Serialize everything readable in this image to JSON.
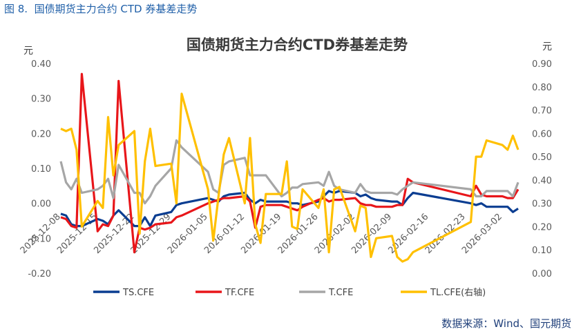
{
  "figure_label": "图 8.",
  "figure_caption": "国债期货主力合约 CTD 券基差走势",
  "source": "数据来源：Wind、国元期货",
  "chart_data": {
    "type": "line",
    "title": "国债期货主力合约CTD券基差走势",
    "ylabel_left": "元",
    "ylabel_right": "元",
    "ylim_left": [
      -0.2,
      0.4
    ],
    "yticks_left": [
      "0.40",
      "0.30",
      "0.20",
      "0.10",
      "0.00",
      "-0.10",
      "-0.20"
    ],
    "ylim_right": [
      0.0,
      0.9
    ],
    "yticks_right": [
      "0.90",
      "0.80",
      "0.70",
      "0.60",
      "0.50",
      "0.40",
      "0.30",
      "0.20",
      "0.10",
      "0.00"
    ],
    "xticks": [
      "2025-12-08",
      "2025-12-15",
      "2025-12-22",
      "2025-12-29",
      "2026-01-05",
      "2026-01-12",
      "2026-01-19",
      "2026-01-26",
      "2026-02-02",
      "2026-02-09",
      "2026-02-16",
      "2026-02-23",
      "2026-03-02"
    ],
    "grid": false,
    "legend_position": "bottom",
    "dates": [
      "2025-12-08",
      "2025-12-09",
      "2025-12-10",
      "2025-12-11",
      "2025-12-12",
      "2025-12-15",
      "2025-12-16",
      "2025-12-17",
      "2025-12-18",
      "2025-12-19",
      "2025-12-22",
      "2025-12-23",
      "2025-12-24",
      "2025-12-25",
      "2025-12-26",
      "2025-12-29",
      "2025-12-30",
      "2025-12-31",
      "2026-01-05",
      "2026-01-06",
      "2026-01-07",
      "2026-01-08",
      "2026-01-09",
      "2026-01-12",
      "2026-01-13",
      "2026-01-14",
      "2026-01-15",
      "2026-01-16",
      "2026-01-19",
      "2026-01-20",
      "2026-01-21",
      "2026-01-22",
      "2026-01-23",
      "2026-01-26",
      "2026-01-27",
      "2026-01-28",
      "2026-01-29",
      "2026-01-30",
      "2026-02-02",
      "2026-02-03",
      "2026-02-04",
      "2026-02-05",
      "2026-02-06",
      "2026-02-09",
      "2026-02-10",
      "2026-02-11",
      "2026-02-12",
      "2026-02-13",
      "2026-02-24",
      "2026-02-25",
      "2026-02-26",
      "2026-02-27",
      "2026-03-02",
      "2026-03-03",
      "2026-03-04",
      "2026-03-05"
    ],
    "series": [
      {
        "name": "TS.CFE",
        "axis": "left",
        "color": "#0a3d91",
        "values": [
          -0.03,
          -0.035,
          -0.06,
          -0.065,
          -0.065,
          -0.045,
          -0.05,
          -0.06,
          -0.035,
          -0.02,
          -0.065,
          -0.065,
          -0.04,
          -0.065,
          -0.035,
          -0.025,
          -0.005,
          0.0,
          0.015,
          0.01,
          0.005,
          0.02,
          0.025,
          0.03,
          0.01,
          0.0,
          0.01,
          0.005,
          0.005,
          0.005,
          0.0,
          0.0,
          -0.005,
          0.005,
          0.02,
          0.035,
          0.03,
          0.035,
          0.03,
          0.02,
          0.025,
          0.015,
          0.01,
          0.005,
          0.005,
          -0.005,
          0.015,
          0.03,
          0.0,
          -0.005,
          0.0,
          -0.01,
          -0.01,
          -0.01,
          -0.025,
          -0.015
        ]
      },
      {
        "name": "TF.CFE",
        "axis": "left",
        "color": "#e8161a",
        "values": [
          -0.04,
          -0.045,
          -0.065,
          -0.07,
          0.37,
          -0.08,
          -0.06,
          -0.065,
          -0.035,
          0.35,
          -0.14,
          -0.07,
          -0.075,
          -0.07,
          -0.06,
          -0.055,
          -0.04,
          -0.035,
          0.0,
          0.005,
          0.01,
          0.015,
          0.015,
          0.02,
          0.005,
          -0.07,
          -0.01,
          -0.005,
          -0.005,
          -0.01,
          -0.015,
          -0.02,
          -0.01,
          0.01,
          0.015,
          0.005,
          0.01,
          0.01,
          0.015,
          0.0,
          -0.005,
          -0.005,
          -0.01,
          -0.01,
          -0.005,
          -0.005,
          0.07,
          0.06,
          0.02,
          0.05,
          0.025,
          0.02,
          0.02,
          0.015,
          0.015,
          0.04
        ]
      },
      {
        "name": "T.CFE",
        "axis": "left",
        "color": "#a6a6a6",
        "values": [
          0.12,
          0.06,
          0.04,
          0.07,
          0.03,
          0.04,
          0.05,
          0.07,
          0.015,
          0.11,
          0.03,
          0.03,
          0.0,
          0.02,
          0.05,
          0.1,
          0.18,
          0.16,
          0.09,
          0.04,
          0.03,
          0.11,
          0.12,
          0.13,
          0.08,
          0.08,
          0.08,
          0.08,
          0.02,
          0.03,
          0.045,
          0.045,
          0.055,
          0.06,
          0.05,
          0.09,
          0.05,
          0.04,
          0.03,
          0.055,
          0.035,
          0.03,
          0.03,
          0.03,
          0.025,
          0.04,
          0.05,
          0.06,
          0.04,
          0.02,
          0.02,
          0.035,
          0.035,
          0.035,
          0.02,
          0.06
        ]
      },
      {
        "name": "TL.CFE(右轴)",
        "axis": "right",
        "color": "#ffc000",
        "values": [
          0.62,
          0.61,
          0.62,
          0.53,
          0.2,
          0.31,
          0.28,
          0.67,
          0.42,
          0.55,
          0.61,
          0.17,
          0.48,
          0.62,
          0.46,
          0.47,
          0.3,
          0.77,
          0.36,
          0.14,
          0.33,
          0.51,
          0.58,
          0.3,
          0.58,
          0.21,
          0.13,
          0.34,
          0.34,
          0.48,
          0.2,
          0.19,
          0.36,
          0.28,
          0.36,
          0.09,
          0.36,
          0.37,
          0.18,
          0.29,
          0.28,
          0.07,
          0.15,
          0.16,
          0.07,
          0.05,
          0.06,
          0.09,
          0.22,
          0.5,
          0.5,
          0.57,
          0.55,
          0.53,
          0.59,
          0.53
        ]
      }
    ]
  }
}
